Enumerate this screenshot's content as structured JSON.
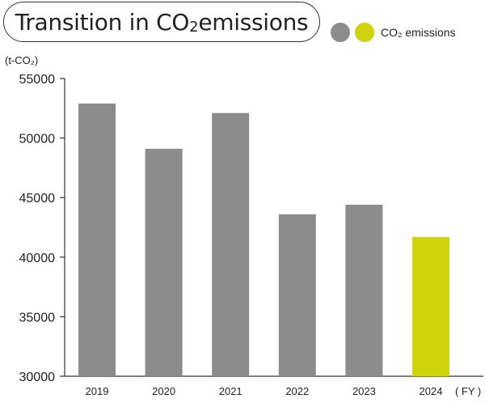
{
  "title": {
    "prefix": "Transition in CO",
    "subscript": "2",
    "suffix": " emissions"
  },
  "legend": {
    "label": "CO₂ emissions",
    "dot_colors": [
      "#8c8c8c",
      "#cfd30b"
    ]
  },
  "colors": {
    "bar_default": "#8c8c8c",
    "bar_highlight": "#cfd30b",
    "axis": "#333333"
  },
  "chart_data": {
    "type": "bar",
    "title": "Transition in CO2 emissions",
    "ylabel": "(t-CO₂)",
    "xlabel": "( FY )",
    "categories": [
      "2019",
      "2020",
      "2021",
      "2022",
      "2023",
      "2024"
    ],
    "values": [
      52900,
      49100,
      52100,
      43600,
      44400,
      41700
    ],
    "highlight": [
      "2024"
    ],
    "ylim": [
      30000,
      55000
    ],
    "yticks": [
      30000,
      35000,
      40000,
      45000,
      50000,
      55000
    ],
    "legend": [
      "CO₂ emissions"
    ],
    "legend_position": "top-right",
    "grid": false
  }
}
